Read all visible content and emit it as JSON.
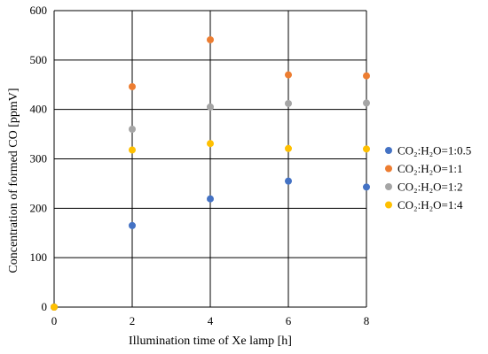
{
  "chart_data": {
    "type": "scatter",
    "xlabel": "Illumination time of Xe lamp [h]",
    "ylabel": "Concentration of formed CO [ppmV]",
    "xlim": [
      0,
      8
    ],
    "ylim": [
      0,
      600
    ],
    "xticks": [
      "0",
      "2",
      "4",
      "6",
      "8"
    ],
    "yticks": [
      "0",
      "100",
      "200",
      "300",
      "400",
      "500",
      "600"
    ],
    "grid": true,
    "legend_position": "right",
    "series": [
      {
        "name": "CO₂:H₂O=1:0.5",
        "color": "#4472C4",
        "x": [
          0,
          2,
          4,
          6,
          8
        ],
        "y": [
          0,
          165,
          219,
          255,
          243
        ]
      },
      {
        "name": "CO₂:H₂O=1:1",
        "color": "#ED7D31",
        "x": [
          0,
          2,
          4,
          6,
          8
        ],
        "y": [
          0,
          446,
          541,
          470,
          468
        ]
      },
      {
        "name": "CO₂:H₂O=1:2",
        "color": "#A5A5A5",
        "x": [
          0,
          2,
          4,
          6,
          8
        ],
        "y": [
          0,
          360,
          405,
          412,
          413
        ]
      },
      {
        "name": "CO₂:H₂O=1:4",
        "color": "#FFC000",
        "x": [
          0,
          2,
          4,
          6,
          8
        ],
        "y": [
          0,
          318,
          331,
          321,
          320
        ]
      }
    ]
  }
}
